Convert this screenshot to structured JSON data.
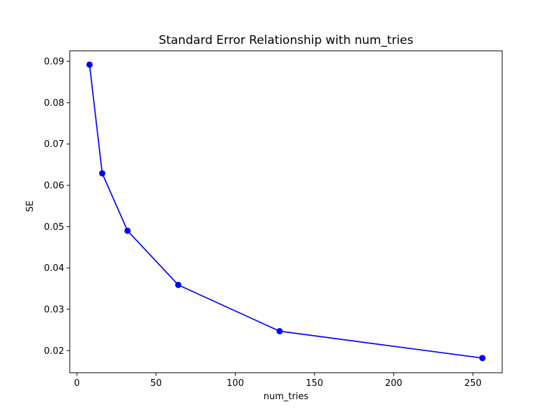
{
  "figure": {
    "background": "#ffffff",
    "kind": "matplotlib-line-chart"
  },
  "chart_data": {
    "type": "line",
    "title": "Standard Error Relationship with num_tries",
    "xlabel": "num_tries",
    "ylabel": "SE",
    "x": [
      8,
      16,
      32,
      64,
      128,
      256
    ],
    "y": [
      0.0892,
      0.0629,
      0.049,
      0.0359,
      0.0247,
      0.0182
    ],
    "x_ticks": [
      {
        "v": 0,
        "label": "0"
      },
      {
        "v": 50,
        "label": "50"
      },
      {
        "v": 100,
        "label": "100"
      },
      {
        "v": 150,
        "label": "150"
      },
      {
        "v": 200,
        "label": "200"
      },
      {
        "v": 250,
        "label": "250"
      }
    ],
    "y_ticks": [
      {
        "v": 0.02,
        "label": "0.02"
      },
      {
        "v": 0.03,
        "label": "0.03"
      },
      {
        "v": 0.04,
        "label": "0.04"
      },
      {
        "v": 0.05,
        "label": "0.05"
      },
      {
        "v": 0.06,
        "label": "0.06"
      },
      {
        "v": 0.07,
        "label": "0.07"
      },
      {
        "v": 0.08,
        "label": "0.08"
      },
      {
        "v": 0.09,
        "label": "0.09"
      }
    ],
    "xlim": [
      -4.5,
      268.5
    ],
    "ylim": [
      0.01465,
      0.09255
    ],
    "line_color": "#0000ff",
    "marker": "o",
    "marker_color": "#0000ff",
    "spine_color": "#000000",
    "grid": false,
    "legend": null
  }
}
